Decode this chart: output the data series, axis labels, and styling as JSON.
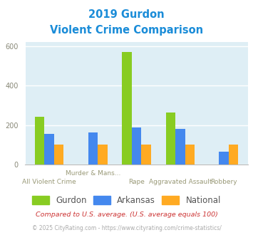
{
  "title_line1": "2019 Gurdon",
  "title_line2": "Violent Crime Comparison",
  "title_color": "#1a8cd8",
  "gurdon": [
    242,
    0,
    570,
    265,
    0
  ],
  "arkansas": [
    155,
    163,
    188,
    180,
    65
  ],
  "national": [
    100,
    100,
    100,
    100,
    100
  ],
  "gurdon_color": "#88cc22",
  "arkansas_color": "#4488ee",
  "national_color": "#ffaa22",
  "ylim": [
    0,
    620
  ],
  "yticks": [
    0,
    200,
    400,
    600
  ],
  "bg_color": "#deeef5",
  "footer1": "Compared to U.S. average. (U.S. average equals 100)",
  "footer2": "© 2025 CityRating.com - https://www.cityrating.com/crime-statistics/",
  "footer1_color": "#cc3333",
  "footer2_color": "#aaaaaa",
  "legend_labels": [
    "Gurdon",
    "Arkansas",
    "National"
  ],
  "xlabel_top": [
    "",
    "Murder & Mans...",
    "",
    "",
    ""
  ],
  "xlabel_bottom": [
    "All Violent Crime",
    "",
    "Rape",
    "Aggravated Assault",
    "Robbery"
  ],
  "xlabel_color": "#999977",
  "bar_width": 0.22
}
